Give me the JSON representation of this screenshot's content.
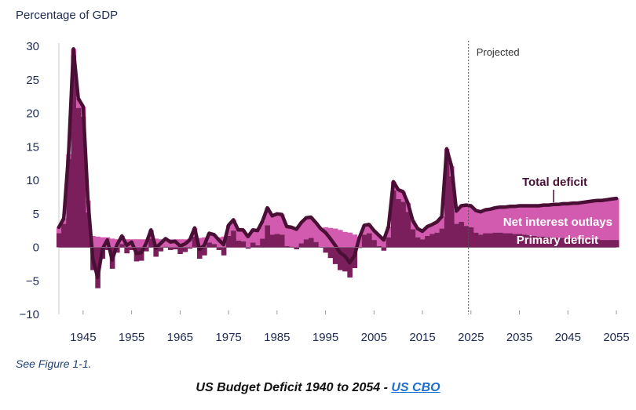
{
  "chart_data": {
    "type": "area",
    "y_axis_title": "Percentage of GDP",
    "ylim": [
      -10,
      30
    ],
    "y_ticks": [
      "30",
      "25",
      "20",
      "15",
      "10",
      "5",
      "0",
      "−5",
      "−10"
    ],
    "y_tick_values": [
      30,
      25,
      20,
      15,
      10,
      5,
      0,
      -5,
      -10
    ],
    "xlim": [
      1940,
      2055
    ],
    "x_ticks": [
      "1945",
      "1955",
      "1965",
      "1975",
      "1985",
      "1995",
      "2005",
      "2015",
      "2025",
      "2035",
      "2045",
      "2055"
    ],
    "x_tick_values": [
      1945,
      1955,
      1965,
      1975,
      1985,
      1995,
      2005,
      2015,
      2025,
      2035,
      2045,
      2055
    ],
    "projection_start_year": 2024.5,
    "projection_label": "Projected",
    "colors": {
      "total_deficit": "#4a0f35",
      "net_interest_outlays": "#d25bb0",
      "primary_deficit": "#7a1f5c",
      "projection_line": "#555555",
      "text": "#1d2b53"
    },
    "series": [
      {
        "name": "Total deficit",
        "x": [
          1940,
          1941,
          1942,
          1943,
          1944,
          1945,
          1946,
          1947,
          1948,
          1949,
          1950,
          1951,
          1952,
          1953,
          1954,
          1955,
          1956,
          1957,
          1958,
          1959,
          1960,
          1961,
          1962,
          1963,
          1964,
          1965,
          1966,
          1967,
          1968,
          1969,
          1970,
          1971,
          1972,
          1973,
          1974,
          1975,
          1976,
          1977,
          1978,
          1979,
          1980,
          1981,
          1982,
          1983,
          1984,
          1985,
          1986,
          1987,
          1988,
          1989,
          1990,
          1991,
          1992,
          1993,
          1994,
          1995,
          1996,
          1997,
          1998,
          1999,
          2000,
          2001,
          2002,
          2003,
          2004,
          2005,
          2006,
          2007,
          2008,
          2009,
          2010,
          2011,
          2012,
          2013,
          2014,
          2015,
          2016,
          2017,
          2018,
          2019,
          2020,
          2021,
          2022,
          2023,
          2024,
          2025,
          2026,
          2027,
          2028,
          2029,
          2030,
          2031,
          2032,
          2033,
          2034,
          2035,
          2036,
          2037,
          2038,
          2039,
          2040,
          2041,
          2042,
          2043,
          2044,
          2045,
          2046,
          2047,
          2048,
          2049,
          2050,
          2051,
          2052,
          2053,
          2054,
          2055
        ],
        "values": [
          3.0,
          4.3,
          13.9,
          29.6,
          22.2,
          21.0,
          7.0,
          -1.7,
          -4.5,
          -0.2,
          1.1,
          -1.9,
          0.4,
          1.7,
          0.3,
          0.8,
          -0.9,
          -0.8,
          0.6,
          2.6,
          -0.1,
          0.6,
          1.3,
          0.8,
          0.9,
          0.2,
          0.5,
          1.1,
          2.9,
          -0.3,
          0.3,
          2.1,
          1.9,
          1.1,
          0.4,
          3.3,
          4.1,
          2.6,
          2.6,
          1.6,
          2.6,
          2.5,
          3.9,
          5.9,
          4.7,
          5.0,
          4.9,
          3.1,
          3.0,
          2.7,
          3.7,
          4.4,
          4.5,
          3.7,
          2.8,
          2.2,
          1.3,
          0.3,
          -0.8,
          -1.3,
          -2.3,
          -1.2,
          1.5,
          3.3,
          3.4,
          2.5,
          1.8,
          1.1,
          3.1,
          9.8,
          8.6,
          8.3,
          6.6,
          4.0,
          2.8,
          2.4,
          3.1,
          3.4,
          3.8,
          4.6,
          14.7,
          12.1,
          5.4,
          6.2,
          6.3,
          6.2,
          5.5,
          5.3,
          5.6,
          5.7,
          5.9,
          6.0,
          6.0,
          6.1,
          6.1,
          6.2,
          6.2,
          6.2,
          6.2,
          6.2,
          6.3,
          6.3,
          6.4,
          6.4,
          6.5,
          6.5,
          6.6,
          6.6,
          6.7,
          6.8,
          6.9,
          7.0,
          7.0,
          7.1,
          7.2,
          7.3
        ]
      },
      {
        "name": "Net interest outlays",
        "x": [
          1940,
          1941,
          1942,
          1943,
          1944,
          1945,
          1946,
          1947,
          1948,
          1949,
          1950,
          1951,
          1952,
          1953,
          1954,
          1955,
          1956,
          1957,
          1958,
          1959,
          1960,
          1961,
          1962,
          1963,
          1964,
          1965,
          1966,
          1967,
          1968,
          1969,
          1970,
          1971,
          1972,
          1973,
          1974,
          1975,
          1976,
          1977,
          1978,
          1979,
          1980,
          1981,
          1982,
          1983,
          1984,
          1985,
          1986,
          1987,
          1988,
          1989,
          1990,
          1991,
          1992,
          1993,
          1994,
          1995,
          1996,
          1997,
          1998,
          1999,
          2000,
          2001,
          2002,
          2003,
          2004,
          2005,
          2006,
          2007,
          2008,
          2009,
          2010,
          2011,
          2012,
          2013,
          2014,
          2015,
          2016,
          2017,
          2018,
          2019,
          2020,
          2021,
          2022,
          2023,
          2024,
          2025,
          2026,
          2027,
          2028,
          2029,
          2030,
          2031,
          2032,
          2033,
          2034,
          2035,
          2036,
          2037,
          2038,
          2039,
          2040,
          2041,
          2042,
          2043,
          2044,
          2045,
          2046,
          2047,
          2048,
          2049,
          2050,
          2051,
          2052,
          2053,
          2054,
          2055
        ],
        "values": [
          0.9,
          0.8,
          0.7,
          1.0,
          1.4,
          1.5,
          1.8,
          1.7,
          1.6,
          1.5,
          1.5,
          1.3,
          1.2,
          1.2,
          1.2,
          1.2,
          1.2,
          1.2,
          1.2,
          1.3,
          1.3,
          1.2,
          1.2,
          1.2,
          1.2,
          1.2,
          1.2,
          1.3,
          1.3,
          1.4,
          1.5,
          1.4,
          1.4,
          1.5,
          1.6,
          1.6,
          1.6,
          1.6,
          1.7,
          1.8,
          1.9,
          2.2,
          2.6,
          2.6,
          2.8,
          3.0,
          3.0,
          2.9,
          2.9,
          3.0,
          3.1,
          3.2,
          3.1,
          2.9,
          2.8,
          3.0,
          2.9,
          2.8,
          2.6,
          2.3,
          2.2,
          1.9,
          1.6,
          1.4,
          1.3,
          1.4,
          1.6,
          1.6,
          1.6,
          1.3,
          1.4,
          1.5,
          1.3,
          1.3,
          1.3,
          1.2,
          1.4,
          1.4,
          1.6,
          1.8,
          1.6,
          1.5,
          1.9,
          2.4,
          3.1,
          3.2,
          3.3,
          3.4,
          3.5,
          3.6,
          3.7,
          3.8,
          3.9,
          4.0,
          4.1,
          4.2,
          4.3,
          4.4,
          4.5,
          4.6,
          4.7,
          4.8,
          4.9,
          5.0,
          5.1,
          5.2,
          5.3,
          5.4,
          5.5,
          5.6,
          5.7,
          5.8,
          5.9,
          6.0,
          6.1,
          6.2
        ]
      },
      {
        "name": "Primary deficit",
        "x": [
          1940,
          1941,
          1942,
          1943,
          1944,
          1945,
          1946,
          1947,
          1948,
          1949,
          1950,
          1951,
          1952,
          1953,
          1954,
          1955,
          1956,
          1957,
          1958,
          1959,
          1960,
          1961,
          1962,
          1963,
          1964,
          1965,
          1966,
          1967,
          1968,
          1969,
          1970,
          1971,
          1972,
          1973,
          1974,
          1975,
          1976,
          1977,
          1978,
          1979,
          1980,
          1981,
          1982,
          1983,
          1984,
          1985,
          1986,
          1987,
          1988,
          1989,
          1990,
          1991,
          1992,
          1993,
          1994,
          1995,
          1996,
          1997,
          1998,
          1999,
          2000,
          2001,
          2002,
          2003,
          2004,
          2005,
          2006,
          2007,
          2008,
          2009,
          2010,
          2011,
          2012,
          2013,
          2014,
          2015,
          2016,
          2017,
          2018,
          2019,
          2020,
          2021,
          2022,
          2023,
          2024,
          2025,
          2026,
          2027,
          2028,
          2029,
          2030,
          2031,
          2032,
          2033,
          2034,
          2035,
          2036,
          2037,
          2038,
          2039,
          2040,
          2041,
          2042,
          2043,
          2044,
          2045,
          2046,
          2047,
          2048,
          2049,
          2050,
          2051,
          2052,
          2053,
          2054,
          2055
        ],
        "values": [
          2.1,
          3.5,
          13.2,
          28.6,
          20.8,
          19.5,
          5.2,
          -3.4,
          -6.1,
          -1.7,
          -0.4,
          -3.2,
          -0.8,
          0.5,
          -0.9,
          -0.4,
          -2.1,
          -2.0,
          -0.6,
          1.3,
          -1.4,
          -0.6,
          0.1,
          -0.4,
          -0.3,
          -1.0,
          -0.7,
          -0.2,
          1.6,
          -1.7,
          -1.2,
          0.7,
          0.5,
          -0.4,
          -1.2,
          1.7,
          2.5,
          1.0,
          0.9,
          -0.2,
          0.7,
          0.3,
          1.3,
          3.3,
          1.9,
          2.0,
          1.9,
          0.2,
          0.1,
          -0.3,
          0.6,
          1.2,
          1.4,
          0.8,
          0.0,
          -0.8,
          -1.6,
          -2.5,
          -3.4,
          -3.6,
          -4.5,
          -3.1,
          -0.1,
          1.9,
          2.1,
          1.1,
          0.2,
          -0.5,
          1.5,
          8.5,
          7.2,
          6.8,
          5.3,
          2.7,
          1.5,
          1.2,
          1.7,
          2.0,
          2.2,
          2.8,
          13.1,
          10.6,
          3.5,
          3.8,
          3.2,
          3.0,
          2.2,
          1.9,
          2.1,
          2.1,
          2.2,
          2.2,
          2.1,
          2.1,
          2.0,
          2.0,
          1.9,
          1.8,
          1.7,
          1.6,
          1.6,
          1.5,
          1.5,
          1.4,
          1.4,
          1.3,
          1.3,
          1.2,
          1.2,
          1.2,
          1.2,
          1.2,
          1.1,
          1.1,
          1.1,
          1.1
        ]
      }
    ],
    "annotations": [
      "Total deficit",
      "Net interest outlays",
      "Primary deficit"
    ]
  },
  "footer": {
    "see_figure": "See Figure 1-1.",
    "caption_text": "US Budget Deficit 1940 to 2054 - ",
    "caption_link": "US CBO"
  }
}
